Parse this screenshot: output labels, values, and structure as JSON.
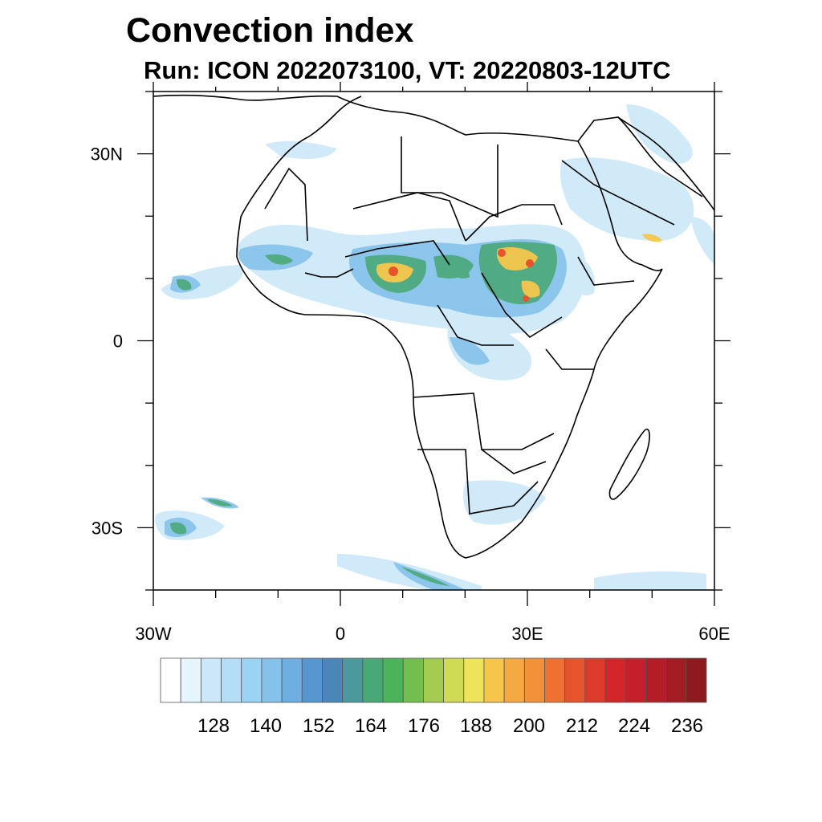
{
  "title": "Convection index",
  "subtitle": "Run: ICON 2022073100,  VT: 20220803-12UTC",
  "map": {
    "lon_range": [
      -30,
      60
    ],
    "lat_range": [
      -40,
      40
    ],
    "lon_ticks": [
      {
        "value": -30,
        "label": "30W"
      },
      {
        "value": 0,
        "label": "0"
      },
      {
        "value": 30,
        "label": "30E"
      },
      {
        "value": 60,
        "label": "60E"
      }
    ],
    "lat_ticks": [
      {
        "value": 30,
        "label": "30N"
      },
      {
        "value": 0,
        "label": "0"
      },
      {
        "value": -30,
        "label": "30S"
      }
    ]
  },
  "colorbar": {
    "labels": [
      "128",
      "140",
      "152",
      "164",
      "176",
      "188",
      "200",
      "212",
      "224",
      "236"
    ],
    "colors": [
      "#ffffff",
      "#e6f4fc",
      "#cce8f8",
      "#b3def5",
      "#9ad3f3",
      "#85c2ea",
      "#6eaee0",
      "#5896d0",
      "#4a87b8",
      "#4b999a",
      "#4aa778",
      "#4bb35a",
      "#72bf4f",
      "#a3cc4f",
      "#cfdb55",
      "#eee45a",
      "#f6c64c",
      "#f5aa41",
      "#f3913a",
      "#ee7033",
      "#e6542e",
      "#dc3b2c",
      "#d3262b",
      "#c51f29",
      "#b41d26",
      "#a31b23",
      "#8e1a1f"
    ]
  }
}
